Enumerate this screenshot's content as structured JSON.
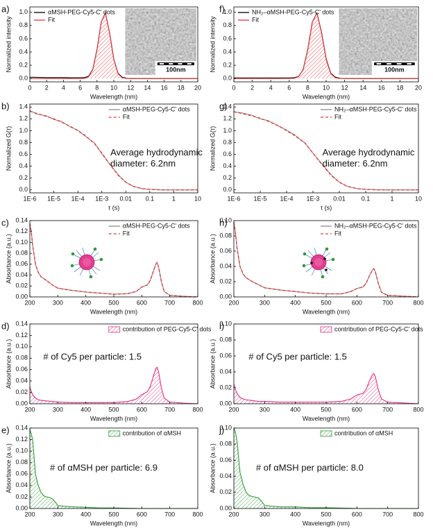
{
  "chart_data": [
    {
      "type": "line",
      "panel_label": "a)",
      "xlabel": "Wavelength (nm)",
      "ylabel": "Normalized intensity",
      "xlim": [
        0,
        20
      ],
      "xticks": [
        0,
        2,
        4,
        6,
        8,
        10,
        12,
        14,
        16,
        18,
        20
      ],
      "ylim": [
        -0.05,
        1.08
      ],
      "yticks": [
        {
          "value": 0,
          "label": "0.0"
        },
        0.2,
        0.4,
        0.6,
        0.8,
        {
          "value": 1,
          "label": "1.0"
        }
      ],
      "legend": "upper left",
      "inset_label": "100nm",
      "x": [
        0,
        2,
        4,
        5,
        6,
        6.5,
        7,
        7.5,
        8,
        8.5,
        9,
        9.5,
        10,
        10.5,
        11,
        11.5,
        12,
        14,
        16,
        18,
        20
      ],
      "series": [
        {
          "name": "αMSH-PEG-Cy5-C' dots",
          "color": "#000000",
          "style": "solid",
          "values": [
            0.02,
            0.015,
            0.015,
            0.012,
            0.012,
            0.015,
            0.035,
            0.14,
            0.44,
            0.85,
            0.99,
            0.69,
            0.29,
            0.08,
            0.02,
            0.005,
            0,
            0,
            0,
            0,
            0
          ]
        },
        {
          "name": "Fit",
          "color": "#e8343a",
          "style": "solid",
          "fill": "hatch",
          "values": [
            0,
            0,
            0,
            0,
            0.001,
            0.003,
            0.025,
            0.135,
            0.437,
            0.85,
            0.99,
            0.69,
            0.29,
            0.073,
            0.011,
            0.001,
            0,
            0,
            0,
            0,
            0
          ]
        }
      ]
    },
    {
      "type": "line",
      "panel_label": "b)",
      "xlabel": "τ (s)",
      "ylabel": "Normalized G(τ)",
      "xlog": true,
      "xlim": [
        1e-06,
        10
      ],
      "xticks": [
        {
          "value": 1e-06,
          "label": "1E-6"
        },
        {
          "value": 1e-05,
          "label": "1E-5"
        },
        {
          "value": 0.0001,
          "label": "1E-4"
        },
        {
          "value": 0.001,
          "label": "1E-3"
        },
        0.01,
        0.1,
        1,
        10
      ],
      "ylim": [
        -0.05,
        1.45
      ],
      "yticks": [
        {
          "value": 0,
          "label": "0.0"
        },
        0.2,
        0.4,
        0.6,
        0.8,
        {
          "value": 1,
          "label": "1.0"
        },
        1.2,
        1.4
      ],
      "legend": "upper right",
      "annotation": [
        "Average hydrodynamic",
        "diameter: 6.2nm"
      ],
      "x": [
        1e-06,
        2e-06,
        5e-06,
        1e-05,
        2e-05,
        5e-05,
        0.0001,
        0.0002,
        0.0005,
        0.001,
        0.002,
        0.005,
        0.01,
        0.02,
        0.05,
        0.1,
        0.3,
        1,
        10
      ],
      "series": [
        {
          "name": "αMSH-PEG-Cy5-C' dots",
          "color": "#888888",
          "style": "solid",
          "values": [
            1.34,
            1.28,
            1.25,
            1.19,
            1.16,
            1.06,
            1.01,
            0.91,
            0.79,
            0.61,
            0.45,
            0.25,
            0.13,
            0.06,
            0.02,
            0.01,
            0,
            0,
            0
          ]
        },
        {
          "name": "Fit",
          "color": "#e8343a",
          "style": "dashed",
          "values": [
            1.33,
            1.29,
            1.24,
            1.2,
            1.15,
            1.07,
            1.0,
            0.92,
            0.78,
            0.62,
            0.45,
            0.24,
            0.13,
            0.06,
            0.02,
            0.01,
            0,
            0,
            0
          ]
        }
      ]
    },
    {
      "type": "line",
      "panel_label": "c)",
      "xlabel": "Wavelength (nm)",
      "ylabel": "Absorbance (a.u.)",
      "xlim": [
        200,
        800
      ],
      "xticks": [
        200,
        300,
        400,
        500,
        600,
        700,
        800
      ],
      "ylim": [
        0,
        0.14
      ],
      "yticks": [
        {
          "value": 0,
          "label": "0.00"
        },
        0.02,
        0.04,
        0.06,
        0.08,
        {
          "value": 0.1,
          "label": "0.10"
        },
        0.12,
        0.14
      ],
      "legend": "upper right",
      "x": [
        200,
        205,
        210,
        220,
        230,
        240,
        260,
        280,
        300,
        350,
        400,
        450,
        500,
        550,
        580,
        600,
        620,
        630,
        640,
        650,
        655,
        660,
        670,
        680,
        700,
        750,
        800
      ],
      "series": [
        {
          "name": "αMSH-PEG-Cy5-C' dots",
          "color": "#888888",
          "style": "solid",
          "values": [
            0.135,
            0.12,
            0.095,
            0.06,
            0.045,
            0.037,
            0.03,
            0.022,
            0.016,
            0.012,
            0.009,
            0.007,
            0.005,
            0.006,
            0.01,
            0.018,
            0.022,
            0.03,
            0.045,
            0.06,
            0.063,
            0.055,
            0.028,
            0.01,
            0.003,
            0.001,
            0
          ]
        },
        {
          "name": "Fit",
          "color": "#e8343a",
          "style": "dashed",
          "values": [
            0.135,
            0.12,
            0.095,
            0.06,
            0.045,
            0.037,
            0.03,
            0.022,
            0.016,
            0.012,
            0.009,
            0.007,
            0.005,
            0.006,
            0.01,
            0.018,
            0.022,
            0.03,
            0.045,
            0.06,
            0.063,
            0.055,
            0.028,
            0.01,
            0.003,
            0.001,
            0
          ]
        }
      ]
    },
    {
      "type": "line",
      "panel_label": "d)",
      "xlabel": "Wavelength (nm)",
      "ylabel": "Absorbance (a.u.)",
      "xlim": [
        200,
        800
      ],
      "xticks": [
        200,
        300,
        400,
        500,
        600,
        700,
        800
      ],
      "ylim": [
        0,
        0.14
      ],
      "yticks": [
        {
          "value": 0,
          "label": "0.00"
        },
        0.02,
        0.04,
        0.06,
        0.08,
        {
          "value": 0.1,
          "label": "0.10"
        },
        0.12,
        0.14
      ],
      "legend": "upper right",
      "annotation": [
        "# of Cy5 per particle: 1.5"
      ],
      "x": [
        200,
        205,
        210,
        220,
        230,
        240,
        260,
        280,
        300,
        350,
        400,
        450,
        500,
        550,
        580,
        600,
        620,
        630,
        640,
        650,
        655,
        660,
        670,
        680,
        700,
        750,
        800
      ],
      "series": [
        {
          "name": "contribution of PEG-Cy5-C' dots",
          "color": "#e0307f",
          "style": "solid",
          "fill": "hatch",
          "values": [
            0.03,
            0.022,
            0.016,
            0.01,
            0.007,
            0.006,
            0.005,
            0.004,
            0.003,
            0.002,
            0.002,
            0.002,
            0.002,
            0.004,
            0.008,
            0.016,
            0.021,
            0.03,
            0.046,
            0.062,
            0.064,
            0.056,
            0.028,
            0.01,
            0.003,
            0.001,
            0
          ]
        }
      ]
    },
    {
      "type": "line",
      "panel_label": "e)",
      "xlabel": "Wavelength (nm)",
      "ylabel": "Absorbance (a.u.)",
      "xlim": [
        200,
        800
      ],
      "xticks": [
        200,
        300,
        400,
        500,
        600,
        700,
        800
      ],
      "ylim": [
        0,
        0.14
      ],
      "yticks": [
        {
          "value": 0,
          "label": "0.00"
        },
        0.02,
        0.04,
        0.06,
        0.08,
        {
          "value": 0.1,
          "label": "0.10"
        },
        0.12,
        0.14
      ],
      "legend": "upper right",
      "annotation": [
        "# of αMSH per particle: 6.9"
      ],
      "x": [
        200,
        205,
        210,
        215,
        220,
        230,
        240,
        250,
        260,
        270,
        280,
        290,
        300,
        320,
        350,
        400,
        450,
        500,
        600,
        700,
        800
      ],
      "series": [
        {
          "name": "contribution of αMSH",
          "color": "#2f9a35",
          "style": "solid",
          "fill": "hatch",
          "values": [
            0.138,
            0.13,
            0.12,
            0.09,
            0.06,
            0.04,
            0.028,
            0.022,
            0.02,
            0.019,
            0.017,
            0.012,
            0.005,
            0.004,
            0.003,
            0.002,
            0.001,
            0.001,
            0,
            0,
            0
          ]
        }
      ]
    },
    {
      "type": "line",
      "panel_label": "f)",
      "xlabel": "Wavelength (nm)",
      "ylabel": "Normalized intensity",
      "xlim": [
        0,
        20
      ],
      "xticks": [
        0,
        2,
        4,
        6,
        8,
        10,
        12,
        14,
        16,
        18,
        20
      ],
      "ylim": [
        -0.05,
        1.08
      ],
      "yticks": [
        {
          "value": 0,
          "label": "0.0"
        },
        0.2,
        0.4,
        0.6,
        0.8,
        {
          "value": 1,
          "label": "1.0"
        }
      ],
      "legend": "upper left",
      "inset_label": "100nm",
      "x": [
        0,
        2,
        4,
        5,
        6,
        6.5,
        7,
        7.5,
        8,
        8.5,
        9,
        9.5,
        10,
        10.5,
        11,
        11.5,
        12,
        14,
        16,
        18,
        20
      ],
      "series": [
        {
          "name": "NH₂–αMSH-PEG-Cy5-C' dots",
          "color": "#000000",
          "style": "solid",
          "values": [
            0.01,
            0.01,
            0.01,
            0.01,
            0.01,
            0.012,
            0.03,
            0.13,
            0.43,
            0.85,
            0.99,
            0.7,
            0.3,
            0.08,
            0.02,
            0.005,
            0,
            0,
            0,
            0,
            0
          ]
        },
        {
          "name": "Fit",
          "color": "#e8343a",
          "style": "solid",
          "fill": "hatch",
          "values": [
            0,
            0,
            0,
            0,
            0.001,
            0.003,
            0.025,
            0.135,
            0.437,
            0.85,
            0.99,
            0.69,
            0.29,
            0.073,
            0.011,
            0.001,
            0,
            0,
            0,
            0,
            0
          ]
        }
      ]
    },
    {
      "type": "line",
      "panel_label": "g)",
      "xlabel": "τ (s)",
      "ylabel": "Normalized G(τ)",
      "xlog": true,
      "xlim": [
        1e-06,
        10
      ],
      "xticks": [
        {
          "value": 1e-06,
          "label": "1E-6"
        },
        {
          "value": 1e-05,
          "label": "1E-5"
        },
        {
          "value": 0.0001,
          "label": "1E-4"
        },
        {
          "value": 0.001,
          "label": "1E-3"
        },
        0.01,
        0.1,
        1,
        10
      ],
      "ylim": [
        -0.05,
        1.45
      ],
      "yticks": [
        {
          "value": 0,
          "label": "0.0"
        },
        0.2,
        0.4,
        0.6,
        0.8,
        {
          "value": 1,
          "label": "1.0"
        },
        1.2,
        1.4
      ],
      "legend": "upper right",
      "annotation": [
        "Average hydrodynamic",
        "diameter: 6.2nm"
      ],
      "x": [
        1e-06,
        2e-06,
        5e-06,
        1e-05,
        2e-05,
        5e-05,
        0.0001,
        0.0002,
        0.0005,
        0.001,
        0.002,
        0.005,
        0.01,
        0.02,
        0.05,
        0.1,
        0.3,
        1,
        10
      ],
      "series": [
        {
          "name": "NH₂–αMSH-PEG-Cy5-C' dots",
          "color": "#888888",
          "style": "solid",
          "values": [
            1.32,
            1.3,
            1.26,
            1.2,
            1.17,
            1.08,
            1.01,
            0.93,
            0.79,
            0.62,
            0.46,
            0.25,
            0.13,
            0.06,
            0.02,
            0.01,
            0,
            0,
            0
          ]
        },
        {
          "name": "Fit",
          "color": "#e8343a",
          "style": "dashed",
          "values": [
            1.32,
            1.29,
            1.25,
            1.21,
            1.16,
            1.08,
            1.0,
            0.92,
            0.79,
            0.62,
            0.45,
            0.24,
            0.13,
            0.06,
            0.02,
            0.01,
            0,
            0,
            0
          ]
        }
      ]
    },
    {
      "type": "line",
      "panel_label": "h)",
      "xlabel": "Wavelength (nm)",
      "ylabel": "Absorbance (a.u.)",
      "xlim": [
        200,
        800
      ],
      "xticks": [
        200,
        300,
        400,
        500,
        600,
        700,
        800
      ],
      "ylim": [
        0,
        0.1
      ],
      "yticks": [
        {
          "value": 0,
          "label": "0.00"
        },
        0.02,
        0.04,
        0.06,
        0.08,
        {
          "value": 0.1,
          "label": "0.10"
        }
      ],
      "legend": "upper right",
      "x": [
        200,
        205,
        210,
        220,
        230,
        240,
        260,
        280,
        300,
        350,
        400,
        450,
        500,
        550,
        580,
        600,
        620,
        630,
        640,
        650,
        655,
        660,
        670,
        680,
        700,
        750,
        800
      ],
      "series": [
        {
          "name": "NH₂–αMSH-PEG-Cy5-C' dots",
          "color": "#888888",
          "style": "solid",
          "values": [
            0.098,
            0.085,
            0.065,
            0.04,
            0.03,
            0.025,
            0.02,
            0.016,
            0.012,
            0.009,
            0.007,
            0.005,
            0.004,
            0.004,
            0.007,
            0.011,
            0.013,
            0.018,
            0.027,
            0.035,
            0.037,
            0.033,
            0.017,
            0.006,
            0.002,
            0.001,
            0
          ]
        },
        {
          "name": "Fit",
          "color": "#e8343a",
          "style": "dashed",
          "values": [
            0.098,
            0.085,
            0.065,
            0.04,
            0.03,
            0.025,
            0.02,
            0.016,
            0.012,
            0.009,
            0.007,
            0.005,
            0.004,
            0.004,
            0.007,
            0.011,
            0.013,
            0.018,
            0.027,
            0.035,
            0.037,
            0.033,
            0.017,
            0.006,
            0.002,
            0.001,
            0
          ]
        }
      ]
    },
    {
      "type": "line",
      "panel_label": "i)",
      "xlabel": "Wavelength (nm)",
      "ylabel": "Absorbance (a.u.)",
      "xlim": [
        200,
        800
      ],
      "xticks": [
        200,
        300,
        400,
        500,
        600,
        700,
        800
      ],
      "ylim": [
        0,
        0.1
      ],
      "yticks": [
        {
          "value": 0,
          "label": "0.00"
        },
        0.02,
        0.04,
        0.06,
        0.08,
        {
          "value": 0.1,
          "label": "0.10"
        }
      ],
      "legend": "upper right",
      "annotation": [
        "# of Cy5 per particle: 1.5"
      ],
      "x": [
        200,
        205,
        210,
        220,
        230,
        240,
        260,
        280,
        300,
        350,
        400,
        450,
        500,
        550,
        580,
        600,
        620,
        630,
        640,
        650,
        655,
        660,
        670,
        680,
        700,
        750,
        800
      ],
      "series": [
        {
          "name": "contribution of PEG-Cy5-C' dots",
          "color": "#e0307f",
          "style": "solid",
          "fill": "hatch",
          "values": [
            0.025,
            0.018,
            0.013,
            0.008,
            0.006,
            0.005,
            0.004,
            0.003,
            0.003,
            0.002,
            0.002,
            0.002,
            0.002,
            0.003,
            0.006,
            0.011,
            0.013,
            0.018,
            0.028,
            0.036,
            0.038,
            0.034,
            0.017,
            0.006,
            0.002,
            0.001,
            0
          ]
        }
      ]
    },
    {
      "type": "line",
      "panel_label": "j)",
      "xlabel": "Wavelength (nm)",
      "ylabel": "Absorbance (a.u.)",
      "xlim": [
        200,
        800
      ],
      "xticks": [
        200,
        300,
        400,
        500,
        600,
        700,
        800
      ],
      "ylim": [
        0,
        0.1
      ],
      "yticks": [
        {
          "value": 0,
          "label": "0.00"
        },
        0.02,
        0.04,
        0.06,
        0.08,
        {
          "value": 0.1,
          "label": "0.10"
        }
      ],
      "legend": "upper right",
      "annotation": [
        "# of αMSH per particle: 8.0"
      ],
      "x": [
        200,
        205,
        210,
        215,
        220,
        230,
        240,
        250,
        260,
        270,
        280,
        290,
        300,
        320,
        350,
        400,
        450,
        500,
        600,
        700,
        800
      ],
      "series": [
        {
          "name": "contribution of αMSH",
          "color": "#2f9a35",
          "style": "solid",
          "fill": "hatch",
          "values": [
            0.1,
            0.095,
            0.085,
            0.065,
            0.045,
            0.03,
            0.02,
            0.016,
            0.015,
            0.014,
            0.013,
            0.009,
            0.004,
            0.003,
            0.002,
            0.002,
            0.001,
            0.001,
            0,
            0,
            0
          ]
        }
      ]
    }
  ]
}
